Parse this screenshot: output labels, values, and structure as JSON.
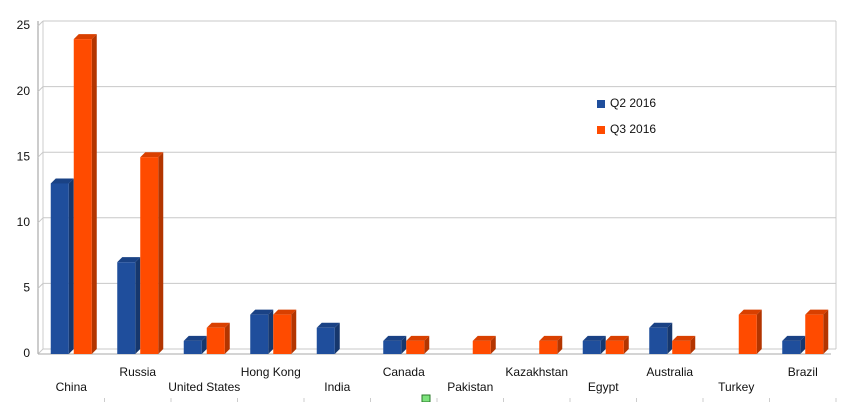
{
  "chart_data": {
    "type": "bar",
    "categories": [
      "China",
      "Russia",
      "United States",
      "Hong Kong",
      "India",
      "Canada",
      "Pakistan",
      "Kazakhstan",
      "Egypt",
      "Australia",
      "Turkey",
      "Brazil"
    ],
    "series": [
      {
        "name": "Q2 2016",
        "color": "#1f4e9c",
        "values": [
          13,
          7,
          1,
          3,
          2,
          1,
          0,
          0,
          1,
          2,
          0,
          1
        ]
      },
      {
        "name": "Q3 2016",
        "color": "#ff4b00",
        "values": [
          24,
          15,
          2,
          3,
          0,
          1,
          1,
          1,
          1,
          1,
          3,
          3
        ]
      }
    ],
    "ylim": [
      0,
      25
    ],
    "yticks": [
      0,
      5,
      10,
      15,
      20,
      25
    ],
    "grid": true
  }
}
